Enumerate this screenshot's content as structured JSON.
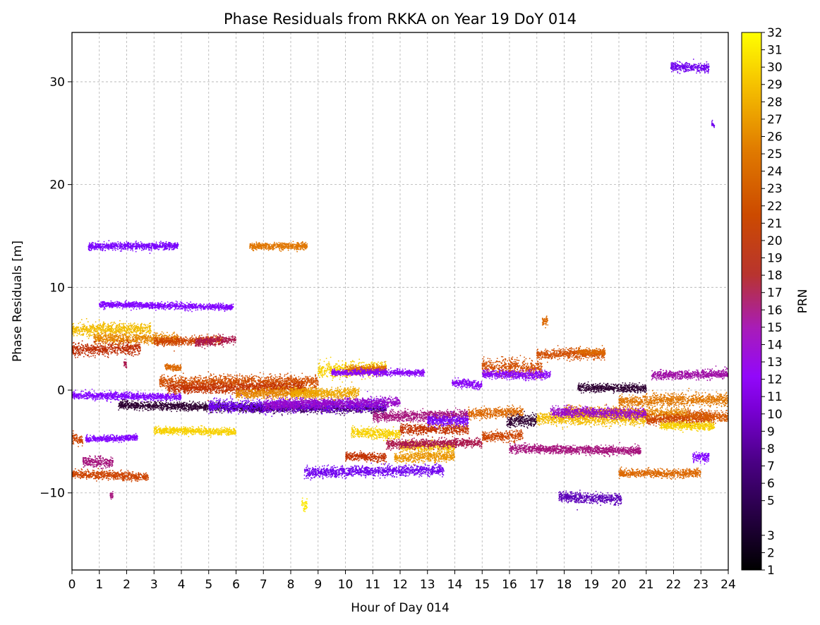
{
  "chart_data": {
    "type": "scatter",
    "title": "Phase Residuals from RKKA on Year 19 DoY 014",
    "xlabel": "Hour of Day 014",
    "ylabel": "Phase Residuals [m]",
    "xlim": [
      0,
      24
    ],
    "ylim": [
      -17.5,
      34.8
    ],
    "x_ticks": [
      0,
      1,
      2,
      3,
      4,
      5,
      6,
      7,
      8,
      9,
      10,
      11,
      12,
      13,
      14,
      15,
      16,
      17,
      18,
      19,
      20,
      21,
      22,
      23,
      24
    ],
    "y_ticks": [
      -10,
      0,
      10,
      20,
      30
    ],
    "grid": true,
    "colorbar": {
      "label": "PRN",
      "colormap": "gnuplot",
      "range": [
        1,
        32
      ],
      "ticks": [
        1,
        2,
        3,
        5,
        6,
        7,
        8,
        9,
        10,
        11,
        12,
        13,
        14,
        15,
        16,
        17,
        18,
        19,
        20,
        21,
        22,
        23,
        24,
        25,
        26,
        27,
        28,
        29,
        30,
        31,
        32
      ]
    },
    "segments": [
      {
        "prn": 8,
        "x0": 0.6,
        "x1": 3.9,
        "y": 14.0,
        "spread": 0.35
      },
      {
        "prn": 25,
        "x0": 6.5,
        "x1": 8.6,
        "y": 14.0,
        "spread": 0.35
      },
      {
        "prn": 9,
        "x0": 1.0,
        "x1": 5.9,
        "y": 8.2,
        "spread": 0.3
      },
      {
        "prn": 29,
        "x0": 0.0,
        "x1": 2.9,
        "y": 5.9,
        "spread": 0.6
      },
      {
        "prn": 26,
        "x0": 0.8,
        "x1": 3.9,
        "y": 5.0,
        "spread": 0.5
      },
      {
        "prn": 18,
        "x0": 0.0,
        "x1": 2.5,
        "y": 4.0,
        "spread": 0.6
      },
      {
        "prn": 21,
        "x0": 3.0,
        "x1": 5.5,
        "y": 4.8,
        "spread": 0.4
      },
      {
        "prn": 15,
        "x0": 4.5,
        "x1": 6.0,
        "y": 4.8,
        "spread": 0.4
      },
      {
        "prn": 9,
        "x0": 0.0,
        "x1": 4.0,
        "y": -0.6,
        "spread": 0.35
      },
      {
        "prn": 24,
        "x0": 3.4,
        "x1": 4.0,
        "y": 2.2,
        "spread": 0.3
      },
      {
        "prn": 22,
        "x0": 3.2,
        "x1": 9.0,
        "y": 0.8,
        "spread": 0.6
      },
      {
        "prn": 19,
        "x0": 3.5,
        "x1": 8.5,
        "y": 0.2,
        "spread": 0.5
      },
      {
        "prn": 26,
        "x0": 6.0,
        "x1": 9.0,
        "y": -0.3,
        "spread": 0.5
      },
      {
        "prn": 2,
        "x0": 1.7,
        "x1": 7.0,
        "y": -1.6,
        "spread": 0.4
      },
      {
        "prn": 3,
        "x0": 6.5,
        "x1": 11.5,
        "y": -1.8,
        "spread": 0.4
      },
      {
        "prn": 7,
        "x0": 5.0,
        "x1": 11.5,
        "y": -1.5,
        "spread": 0.6
      },
      {
        "prn": 12,
        "x0": 7.0,
        "x1": 12.0,
        "y": -1.3,
        "spread": 0.5
      },
      {
        "prn": 30,
        "x0": 9.0,
        "x1": 11.5,
        "y": 2.0,
        "spread": 0.7
      },
      {
        "prn": 24,
        "x0": 10.0,
        "x1": 11.5,
        "y": 2.0,
        "spread": 0.4
      },
      {
        "prn": 10,
        "x0": 9.5,
        "x1": 12.9,
        "y": 1.7,
        "spread": 0.3
      },
      {
        "prn": 28,
        "x0": 8.0,
        "x1": 10.5,
        "y": -0.3,
        "spread": 0.5
      },
      {
        "prn": 30,
        "x0": 3.0,
        "x1": 6.0,
        "y": -4.0,
        "spread": 0.35
      },
      {
        "prn": 9,
        "x0": 0.5,
        "x1": 2.4,
        "y": -4.7,
        "spread": 0.3
      },
      {
        "prn": 21,
        "x0": 0.0,
        "x1": 0.4,
        "y": -4.8,
        "spread": 0.5
      },
      {
        "prn": 14,
        "x0": 0.4,
        "x1": 1.5,
        "y": -7.0,
        "spread": 0.5
      },
      {
        "prn": 21,
        "x0": 0.0,
        "x1": 2.8,
        "y": -8.3,
        "spread": 0.4
      },
      {
        "prn": 7,
        "x0": 8.5,
        "x1": 13.6,
        "y": -7.9,
        "spread": 0.5
      },
      {
        "prn": 19,
        "x0": 10.0,
        "x1": 11.5,
        "y": -6.5,
        "spread": 0.4
      },
      {
        "prn": 30,
        "x0": 10.2,
        "x1": 12.0,
        "y": -4.2,
        "spread": 0.5
      },
      {
        "prn": 29,
        "x0": 12.0,
        "x1": 14.0,
        "y": -5.5,
        "spread": 0.5
      },
      {
        "prn": 27,
        "x0": 11.8,
        "x1": 14.0,
        "y": -6.5,
        "spread": 0.5
      },
      {
        "prn": 15,
        "x0": 11.5,
        "x1": 15.0,
        "y": -5.2,
        "spread": 0.4
      },
      {
        "prn": 19,
        "x0": 12.0,
        "x1": 14.5,
        "y": -3.8,
        "spread": 0.5
      },
      {
        "prn": 14,
        "x0": 11.0,
        "x1": 14.5,
        "y": -2.5,
        "spread": 0.5
      },
      {
        "prn": 8,
        "x0": 13.0,
        "x1": 14.5,
        "y": -3.0,
        "spread": 0.5
      },
      {
        "prn": 10,
        "x0": 13.9,
        "x1": 15.0,
        "y": 0.6,
        "spread": 0.4
      },
      {
        "prn": 24,
        "x0": 14.5,
        "x1": 16.5,
        "y": -2.2,
        "spread": 0.5
      },
      {
        "prn": 22,
        "x0": 15.0,
        "x1": 17.2,
        "y": 2.2,
        "spread": 0.8
      },
      {
        "prn": 10,
        "x0": 15.0,
        "x1": 17.5,
        "y": 1.5,
        "spread": 0.4
      },
      {
        "prn": 2,
        "x0": 15.9,
        "x1": 17.0,
        "y": -3.0,
        "spread": 0.6
      },
      {
        "prn": 21,
        "x0": 15.0,
        "x1": 16.5,
        "y": -4.5,
        "spread": 0.5
      },
      {
        "prn": 14,
        "x0": 16.0,
        "x1": 20.8,
        "y": -5.8,
        "spread": 0.4
      },
      {
        "prn": 22,
        "x0": 17.0,
        "x1": 19.5,
        "y": 3.5,
        "spread": 0.5
      },
      {
        "prn": 24,
        "x0": 18.5,
        "x1": 19.5,
        "y": 3.7,
        "spread": 0.3
      },
      {
        "prn": 24,
        "x0": 17.2,
        "x1": 17.4,
        "y": 6.7,
        "spread": 0.5
      },
      {
        "prn": 2,
        "x0": 18.5,
        "x1": 21.0,
        "y": 0.2,
        "spread": 0.4
      },
      {
        "prn": 5,
        "x0": 17.8,
        "x1": 20.1,
        "y": -10.5,
        "spread": 0.5
      },
      {
        "prn": 29,
        "x0": 17.0,
        "x1": 21.0,
        "y": -2.8,
        "spread": 0.6
      },
      {
        "prn": 26,
        "x0": 18.0,
        "x1": 22.5,
        "y": -2.2,
        "spread": 0.5
      },
      {
        "prn": 12,
        "x0": 17.5,
        "x1": 21.0,
        "y": -2.2,
        "spread": 0.5
      },
      {
        "prn": 24,
        "x0": 20.0,
        "x1": 23.0,
        "y": -8.1,
        "spread": 0.4
      },
      {
        "prn": 13,
        "x0": 21.2,
        "x1": 24.0,
        "y": 1.5,
        "spread": 0.4
      },
      {
        "prn": 25,
        "x0": 20.0,
        "x1": 24.0,
        "y": -1.0,
        "spread": 0.6
      },
      {
        "prn": 21,
        "x0": 21.0,
        "x1": 23.5,
        "y": -2.8,
        "spread": 0.5
      },
      {
        "prn": 30,
        "x0": 21.5,
        "x1": 23.5,
        "y": -3.5,
        "spread": 0.4
      },
      {
        "prn": 23,
        "x0": 22.5,
        "x1": 24.0,
        "y": -2.5,
        "spread": 0.5
      },
      {
        "prn": 9,
        "x0": 22.7,
        "x1": 23.3,
        "y": -6.5,
        "spread": 0.5
      },
      {
        "prn": 7,
        "x0": 21.9,
        "x1": 23.3,
        "y": 31.4,
        "spread": 0.45
      },
      {
        "prn": 7,
        "x0": 23.4,
        "x1": 23.5,
        "y": 25.8,
        "spread": 0.2
      },
      {
        "prn": 31,
        "x0": 8.4,
        "x1": 8.6,
        "y": -11.2,
        "spread": 0.6
      },
      {
        "prn": 14,
        "x0": 1.4,
        "x1": 1.5,
        "y": -10.3,
        "spread": 0.4
      },
      {
        "prn": 15,
        "x0": 1.9,
        "x1": 2.0,
        "y": 2.5,
        "spread": 0.4
      }
    ]
  }
}
